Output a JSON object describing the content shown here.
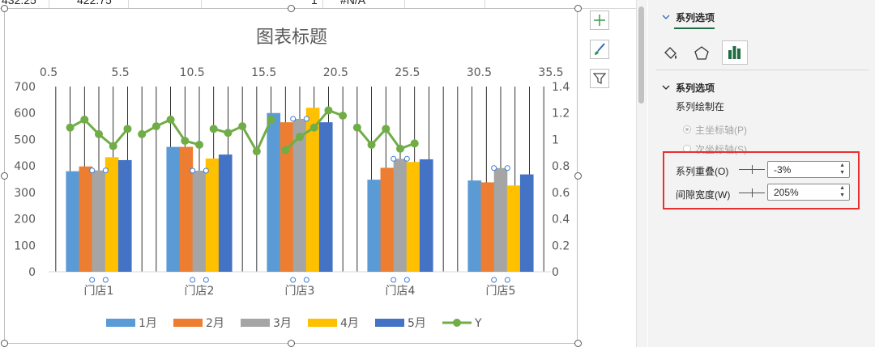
{
  "sheet": {
    "cells": [
      "432.25",
      "422.75",
      "1",
      "#N/A"
    ]
  },
  "chart": {
    "title": "图表标题",
    "top_axis_ticks": [
      "0.5",
      "5.5",
      "10.5",
      "15.5",
      "20.5",
      "25.5",
      "30.5",
      "35.5"
    ],
    "left_axis_ticks": [
      "0",
      "100",
      "200",
      "300",
      "400",
      "500",
      "600",
      "700"
    ],
    "right_axis_ticks": [
      "0",
      "0.2",
      "0.4",
      "0.6",
      "0.8",
      "1",
      "1.2",
      "1.4"
    ],
    "side_buttons": {
      "elements_icon": "plus-icon",
      "styles_icon": "paintbrush-icon",
      "filters_icon": "funnel-icon"
    }
  },
  "chart_data": {
    "type": "bar",
    "title": "图表标题",
    "categories": [
      "门店1",
      "门店2",
      "门店3",
      "门店4",
      "门店5"
    ],
    "ylim": [
      0,
      700
    ],
    "y2lim": [
      0,
      1.4
    ],
    "x2lim": [
      0.5,
      35.5
    ],
    "grid": "vertical lines from secondary x axis",
    "legend_position": "bottom",
    "series": [
      {
        "name": "1月",
        "type": "bar",
        "color": "#5b9bd5",
        "values": [
          380,
          472,
          600,
          348,
          345
        ]
      },
      {
        "name": "2月",
        "type": "bar",
        "color": "#ed7d31",
        "values": [
          398,
          472,
          565,
          393,
          338
        ]
      },
      {
        "name": "3月",
        "type": "bar",
        "color": "#a5a5a5",
        "values": [
          383,
          382,
          578,
          427,
          392
        ]
      },
      {
        "name": "4月",
        "type": "bar",
        "color": "#ffc000",
        "values": [
          433,
          428,
          620,
          415,
          326
        ]
      },
      {
        "name": "5月",
        "type": "bar",
        "color": "#4472c4",
        "values": [
          422,
          443,
          565,
          425,
          368
        ]
      },
      {
        "name": "Y",
        "type": "line",
        "color": "#70ad47",
        "axis": "secondary",
        "points": [
          [
            [
              2,
              1.09
            ],
            [
              3,
              1.15
            ],
            [
              4,
              1.04
            ],
            [
              5,
              0.95
            ],
            [
              6,
              1.08
            ]
          ],
          [
            [
              7,
              1.04
            ],
            [
              8,
              1.1
            ],
            [
              9,
              1.15
            ],
            [
              10,
              0.99
            ],
            [
              11,
              0.96
            ]
          ],
          [
            [
              12,
              1.08
            ],
            [
              13,
              1.05
            ],
            [
              14,
              1.1
            ],
            [
              15,
              0.91
            ],
            [
              16,
              1.15
            ]
          ],
          [
            [
              17,
              0.92
            ],
            [
              18,
              1.02
            ],
            [
              19,
              1.09
            ],
            [
              20,
              1.22
            ],
            [
              21,
              1.18
            ]
          ],
          [
            [
              22,
              1.09
            ],
            [
              23,
              0.96
            ],
            [
              24,
              1.08
            ],
            [
              25,
              0.93
            ],
            [
              26,
              0.97
            ]
          ]
        ]
      }
    ]
  },
  "panel": {
    "tab_label": "系列选项",
    "icons": [
      "fill-line-icon",
      "effects-icon",
      "series-options-icon"
    ],
    "section_label": "系列选项",
    "plot_on_label": "系列绘制在",
    "primary_axis": "主坐标轴(P)",
    "secondary_axis": "次坐标轴(S)",
    "overlap_label": "系列重叠(O)",
    "overlap_value": "-3%",
    "gap_label": "间隙宽度(W)",
    "gap_value": "205%"
  }
}
